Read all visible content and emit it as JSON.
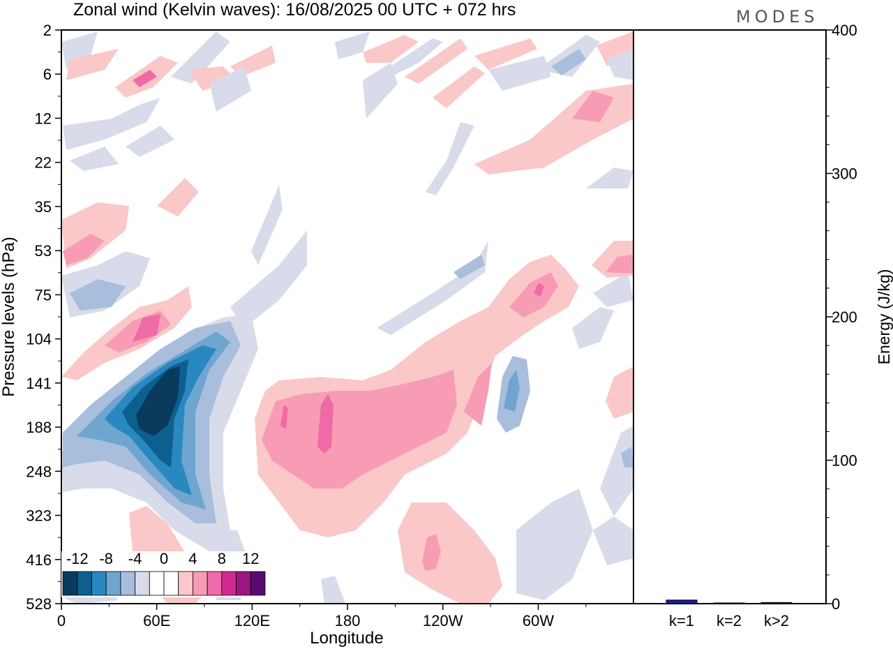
{
  "chart_data": {
    "type": "heatmap",
    "title": "Zonal wind (Kelvin waves):  16/08/2025  00 UTC  + 072 hrs",
    "logo": "MODES",
    "xlabel": "Longitude",
    "ylabel": "Pressure levels (hPa)",
    "x_ticks": [
      "0",
      "60E",
      "120E",
      "180",
      "120W",
      "60W"
    ],
    "y_ticks": [
      "2",
      "6",
      "12",
      "22",
      "35",
      "53",
      "75",
      "104",
      "141",
      "188",
      "248",
      "323",
      "416",
      "528"
    ],
    "colorbar": {
      "tick_labels": [
        "-12",
        "-8",
        "-4",
        "0",
        "4",
        "8",
        "12"
      ],
      "colors": [
        "#0a3b5c",
        "#0d5f8f",
        "#2a88c0",
        "#6ea6cf",
        "#a9bedc",
        "#d8dbea",
        "#ffffff",
        "#ffffff",
        "#fac8c8",
        "#f79cb4",
        "#ef6aa6",
        "#d1288f",
        "#9c1580",
        "#5a0a6e"
      ]
    },
    "energy_panel": {
      "ylabel": "Energy (J/kg)",
      "y_ticks": [
        "0",
        "100",
        "200",
        "300",
        "400"
      ],
      "ylim": [
        0,
        400
      ],
      "categories": [
        "k=1",
        "k=2",
        "k>2"
      ],
      "values": [
        2.5,
        0.5,
        0.8
      ],
      "bar_color": "#1a1aa0"
    }
  }
}
